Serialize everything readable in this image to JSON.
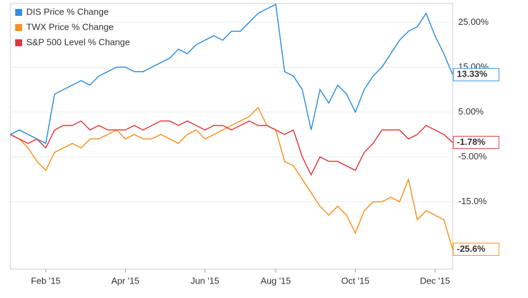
{
  "chart_data": {
    "type": "line",
    "categories": [
      null,
      null,
      null,
      null,
      "Feb '15",
      null,
      null,
      null,
      null,
      null,
      null,
      null,
      null,
      "Apr '15",
      null,
      null,
      null,
      null,
      null,
      null,
      null,
      null,
      "Jun '15",
      null,
      null,
      null,
      null,
      null,
      null,
      null,
      "Aug '15",
      null,
      null,
      null,
      null,
      null,
      null,
      null,
      null,
      "Oct '15",
      null,
      null,
      null,
      null,
      null,
      null,
      null,
      null,
      "Dec '15",
      null,
      null
    ],
    "series": [
      {
        "name": "DIS Price % Change",
        "color": "#2f8fdd",
        "values": [
          0,
          1,
          0,
          -1,
          -2,
          9,
          10,
          11,
          12,
          11,
          13,
          14,
          15,
          15,
          14,
          14,
          15,
          16,
          17,
          19,
          18,
          20,
          21,
          22,
          21,
          23,
          23,
          25,
          27,
          28,
          29,
          14,
          13,
          10,
          1,
          10,
          7,
          11,
          9,
          5,
          10,
          13,
          15,
          18,
          21,
          23,
          24,
          27,
          22,
          18,
          13.33
        ],
        "value_labels": [
          null,
          null,
          null,
          null,
          null,
          null,
          null,
          null,
          null,
          null,
          null,
          null,
          null,
          null,
          null,
          null,
          null,
          null,
          null,
          null,
          null,
          null,
          null,
          null,
          null,
          null,
          null,
          null,
          null,
          null,
          null,
          null,
          null,
          null,
          null,
          null,
          null,
          null,
          null,
          null,
          null,
          null,
          null,
          null,
          null,
          null,
          null,
          null,
          null,
          null,
          "13.33%"
        ]
      },
      {
        "name": "TWX Price % Change",
        "color": "#f7921e",
        "values": [
          0,
          -1,
          -3,
          -6,
          -8,
          -4,
          -3,
          -2,
          -3,
          -1,
          -1,
          0,
          1,
          -1,
          0,
          -1,
          -1,
          0,
          -1,
          -2,
          0,
          1,
          -1,
          0,
          1,
          2,
          3,
          4,
          6,
          2,
          1,
          -6,
          -7,
          -10,
          -13,
          -16,
          -18,
          -16,
          -18,
          -22,
          -17,
          -15,
          -15,
          -14,
          -15,
          -10,
          -19,
          -17,
          -18,
          -19,
          -25.6
        ],
        "value_labels": [
          null,
          null,
          null,
          null,
          null,
          null,
          null,
          null,
          null,
          null,
          null,
          null,
          null,
          null,
          null,
          null,
          null,
          null,
          null,
          null,
          null,
          null,
          null,
          null,
          null,
          null,
          null,
          null,
          null,
          null,
          null,
          null,
          null,
          null,
          null,
          null,
          null,
          null,
          null,
          null,
          null,
          null,
          null,
          null,
          null,
          null,
          null,
          null,
          null,
          null,
          "-25.6%"
        ]
      },
      {
        "name": "S&P 500 Level % Change",
        "color": "#e0383c",
        "values": [
          0,
          -1,
          -2,
          -1,
          -3,
          1,
          2,
          2,
          3,
          1,
          2,
          1,
          1,
          1,
          2,
          1,
          2,
          3,
          3,
          2,
          3,
          2,
          1,
          2,
          2,
          1,
          2,
          3,
          2,
          2,
          1,
          0,
          1,
          -5,
          -9,
          -5,
          -6,
          -6,
          -7,
          -8,
          -4,
          -2,
          1,
          1,
          1,
          -1,
          0,
          2,
          1,
          0,
          -1.78
        ],
        "value_labels": [
          null,
          null,
          null,
          null,
          null,
          null,
          null,
          null,
          null,
          null,
          null,
          null,
          null,
          null,
          null,
          null,
          null,
          null,
          null,
          null,
          null,
          null,
          null,
          null,
          null,
          null,
          null,
          null,
          null,
          null,
          null,
          null,
          null,
          null,
          null,
          null,
          null,
          null,
          null,
          null,
          null,
          null,
          null,
          null,
          null,
          null,
          null,
          null,
          null,
          null,
          "-1.78%"
        ]
      }
    ],
    "ylim": [
      -30,
      29.2
    ],
    "yticks": [
      {
        "value": 25,
        "label": "25.00%"
      },
      {
        "value": 15,
        "label": "15.00%"
      },
      {
        "value": 5,
        "label": "5.00%"
      },
      {
        "value": -5,
        "label": "-5.00%"
      },
      {
        "value": -15,
        "label": "-15.0%"
      }
    ],
    "grid": true,
    "legend": "top-left"
  }
}
